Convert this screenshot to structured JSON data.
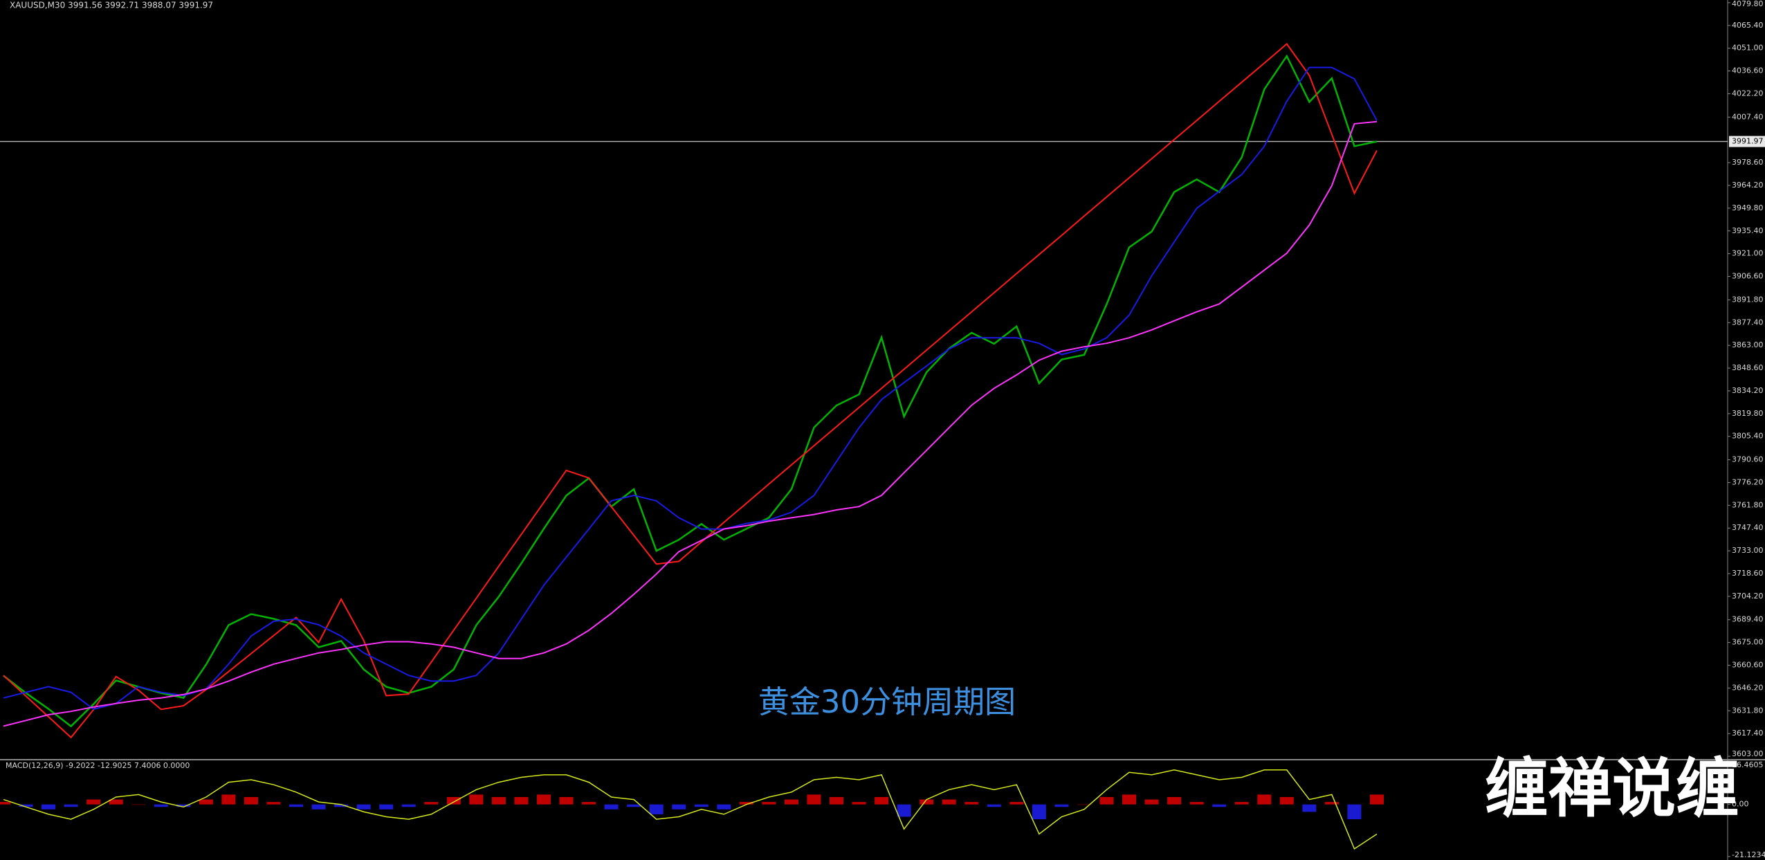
{
  "watermark": "缠禅说缠",
  "chart_data": [
    {
      "type": "line",
      "title": "XAUUSD,M30  3991.56 3992.71 3988.07 3991.97",
      "annotation": "黄金30分钟周期图",
      "last_price": 3991.97,
      "ylim": [
        3601.3,
        4081.5
      ],
      "yticks": [
        {
          "value": 4079.8,
          "label": "4079.80"
        },
        {
          "value": 4065.4,
          "label": "4065.40"
        },
        {
          "value": 4051,
          "label": "4051.00"
        },
        {
          "value": 4036.6,
          "label": "4036.60"
        },
        {
          "value": 4022.2,
          "label": "4022.20"
        },
        {
          "value": 4007.4,
          "label": "4007.40"
        },
        {
          "value": 3978.6,
          "label": "3978.60"
        },
        {
          "value": 3964.2,
          "label": "3964.20"
        },
        {
          "value": 3949.8,
          "label": "3949.80"
        },
        {
          "value": 3935.4,
          "label": "3935.40"
        },
        {
          "value": 3921,
          "label": "3921.00"
        },
        {
          "value": 3906.6,
          "label": "3906.60"
        },
        {
          "value": 3891.8,
          "label": "3891.80"
        },
        {
          "value": 3877.4,
          "label": "3877.40"
        },
        {
          "value": 3863,
          "label": "3863.00"
        },
        {
          "value": 3848.6,
          "label": "3848.60"
        },
        {
          "value": 3834.2,
          "label": "3834.20"
        },
        {
          "value": 3819.8,
          "label": "3819.80"
        },
        {
          "value": 3805.4,
          "label": "3805.40"
        },
        {
          "value": 3790.6,
          "label": "3790.60"
        },
        {
          "value": 3776.2,
          "label": "3776.20"
        },
        {
          "value": 3761.8,
          "label": "3761.80"
        },
        {
          "value": 3747.4,
          "label": "3747.40"
        },
        {
          "value": 3733,
          "label": "3733.00"
        },
        {
          "value": 3718.6,
          "label": "3718.60"
        },
        {
          "value": 3704.2,
          "label": "3704.20"
        },
        {
          "value": 3689.4,
          "label": "3689.40"
        },
        {
          "value": 3675,
          "label": "3675.00"
        },
        {
          "value": 3660.6,
          "label": "3660.60"
        },
        {
          "value": 3646.2,
          "label": "3646.20"
        },
        {
          "value": 3631.8,
          "label": "3631.80"
        },
        {
          "value": 3617.4,
          "label": "3617.40"
        },
        {
          "value": 3603,
          "label": "3603.00"
        }
      ],
      "series": [
        {
          "color": "#00b400",
          "values": [
            3654,
            3643,
            3633,
            3622,
            3636,
            3651,
            3647,
            3643,
            3640,
            3661,
            3686,
            3693,
            3690,
            3686,
            3672,
            3676,
            3658,
            3647,
            3643,
            3647,
            3658,
            3686,
            3704,
            3725,
            3747,
            3768,
            3779,
            3761,
            3772,
            3733,
            3740,
            3750,
            3740,
            3747,
            3754,
            3772,
            3811,
            3825,
            3832,
            3868,
            3818,
            3846,
            3861,
            3871,
            3864,
            3875,
            3839,
            3854,
            3857,
            3889,
            3925,
            3935,
            3960,
            3968,
            3960,
            3982,
            4025,
            4046,
            4017,
            4032,
            3989,
            3991.97
          ]
        },
        {
          "color": "#ff1a1a",
          "values": [
            3654.2,
            3641.1,
            3628.0,
            3614.9,
            3632.5,
            3653.5,
            3644.8,
            3632.7,
            3635.0,
            3645.2,
            3656.6,
            3668.0,
            3679.4,
            3690.8,
            3675.0,
            3702.4,
            3676.3,
            3641.4,
            3642.4,
            3662.6,
            3682.8,
            3703.0,
            3723.3,
            3743.4,
            3763.6,
            3783.9,
            3779.1,
            3760.9,
            3742.8,
            3724.6,
            3726.3,
            3738.6,
            3751.0,
            3763.1,
            3775.3,
            3787.4,
            3799.5,
            3811.6,
            3823.7,
            3835.8,
            3847.9,
            3860.0,
            3872.1,
            3884.2,
            3896.3,
            3908.4,
            3920.5,
            3932.6,
            3944.8,
            3956.9,
            3969.0,
            3981.1,
            3993.2,
            4005.3,
            4017.4,
            4029.5,
            4041.6,
            4053.7,
            4033.8,
            3996.5,
            3959.2,
            3986.3
          ]
        },
        {
          "color": "#1a1ae6",
          "values": [
            3639.9,
            3643.5,
            3647.1,
            3643.5,
            3632.8,
            3636.4,
            3647.1,
            3643.5,
            3641.4,
            3645.6,
            3661.3,
            3679.1,
            3688.4,
            3689.8,
            3686.2,
            3679.1,
            3668.4,
            3661.3,
            3654.2,
            3650.6,
            3650.6,
            3654.2,
            3668.4,
            3689.8,
            3711.2,
            3729.0,
            3746.8,
            3764.6,
            3768.1,
            3764.6,
            3753.9,
            3746.8,
            3746.8,
            3750.3,
            3752.5,
            3757.4,
            3768.1,
            3789.5,
            3810.9,
            3828.7,
            3839.4,
            3850.0,
            3860.7,
            3867.8,
            3867.8,
            3867.8,
            3864.3,
            3857.2,
            3860.7,
            3867.8,
            3882.1,
            3907.0,
            3928.4,
            3949.7,
            3960.4,
            3971.1,
            3988.9,
            4017.4,
            4038.8,
            4038.8,
            4031.6,
            4005.3
          ]
        },
        {
          "color": "#ff33ff",
          "values": [
            3622.1,
            3625.7,
            3629.3,
            3631.4,
            3634.2,
            3636.4,
            3638.5,
            3639.9,
            3642.1,
            3645.6,
            3650.6,
            3656.3,
            3661.3,
            3664.9,
            3668.4,
            3670.6,
            3673.4,
            3675.5,
            3675.5,
            3674.1,
            3672.0,
            3668.4,
            3664.9,
            3664.9,
            3668.4,
            3674.1,
            3682.7,
            3693.4,
            3705.5,
            3718.3,
            3732.5,
            3739.6,
            3746.8,
            3748.9,
            3751.8,
            3753.9,
            3756.0,
            3758.9,
            3761.0,
            3768.1,
            3782.4,
            3796.6,
            3810.9,
            3825.1,
            3835.8,
            3844.3,
            3853.6,
            3859.3,
            3862.1,
            3864.3,
            3867.8,
            3872.8,
            3878.5,
            3884.2,
            3889.2,
            3899.9,
            3910.6,
            3921.3,
            3939.1,
            3964.0,
            4003.2,
            4004.6
          ]
        }
      ]
    },
    {
      "type": "bar",
      "title": "MACD(12,26,9) -9.2022 -12.9025 7.4006 0.0000",
      "color": "#c00000",
      "negative_color": "#1a1ad0",
      "ylim": [
        -21.1234,
        16.4605
      ],
      "yticks": [
        16.4605,
        {
          "value": 0,
          "label": "0.00"
        },
        -21.1234
      ],
      "values": [
        1,
        -1,
        -2,
        -1,
        2,
        2,
        0,
        -1,
        -1,
        2,
        4,
        3,
        1,
        -1,
        -2,
        -1,
        -2,
        -2,
        -1,
        1,
        3,
        4,
        3,
        3,
        4,
        3,
        1,
        -2,
        -1,
        -4,
        -2,
        -1,
        -2,
        1,
        1,
        2,
        4,
        3,
        1,
        3,
        -5,
        2,
        2,
        1,
        -1,
        1,
        -6,
        -1,
        0,
        3,
        4,
        2,
        3,
        1,
        -1,
        1,
        4,
        3,
        -3,
        1,
        -6,
        4
      ],
      "series": [
        {
          "color": "#d4e81a",
          "values": [
            2,
            -1,
            -4,
            -6,
            -2,
            3,
            4,
            1,
            -1,
            3,
            9,
            10,
            8,
            5,
            1,
            0,
            -3,
            -5,
            -6,
            -4,
            1,
            6,
            9,
            11,
            12,
            12,
            9,
            3,
            2,
            -6,
            -5,
            -2,
            -4,
            0,
            3,
            5,
            10,
            11,
            10,
            12,
            -10,
            2,
            6,
            8,
            6,
            8,
            -12,
            -5,
            -2,
            6,
            13,
            12,
            14,
            12,
            10,
            11,
            14,
            14,
            2,
            4,
            -18,
            -12
          ]
        }
      ]
    }
  ]
}
